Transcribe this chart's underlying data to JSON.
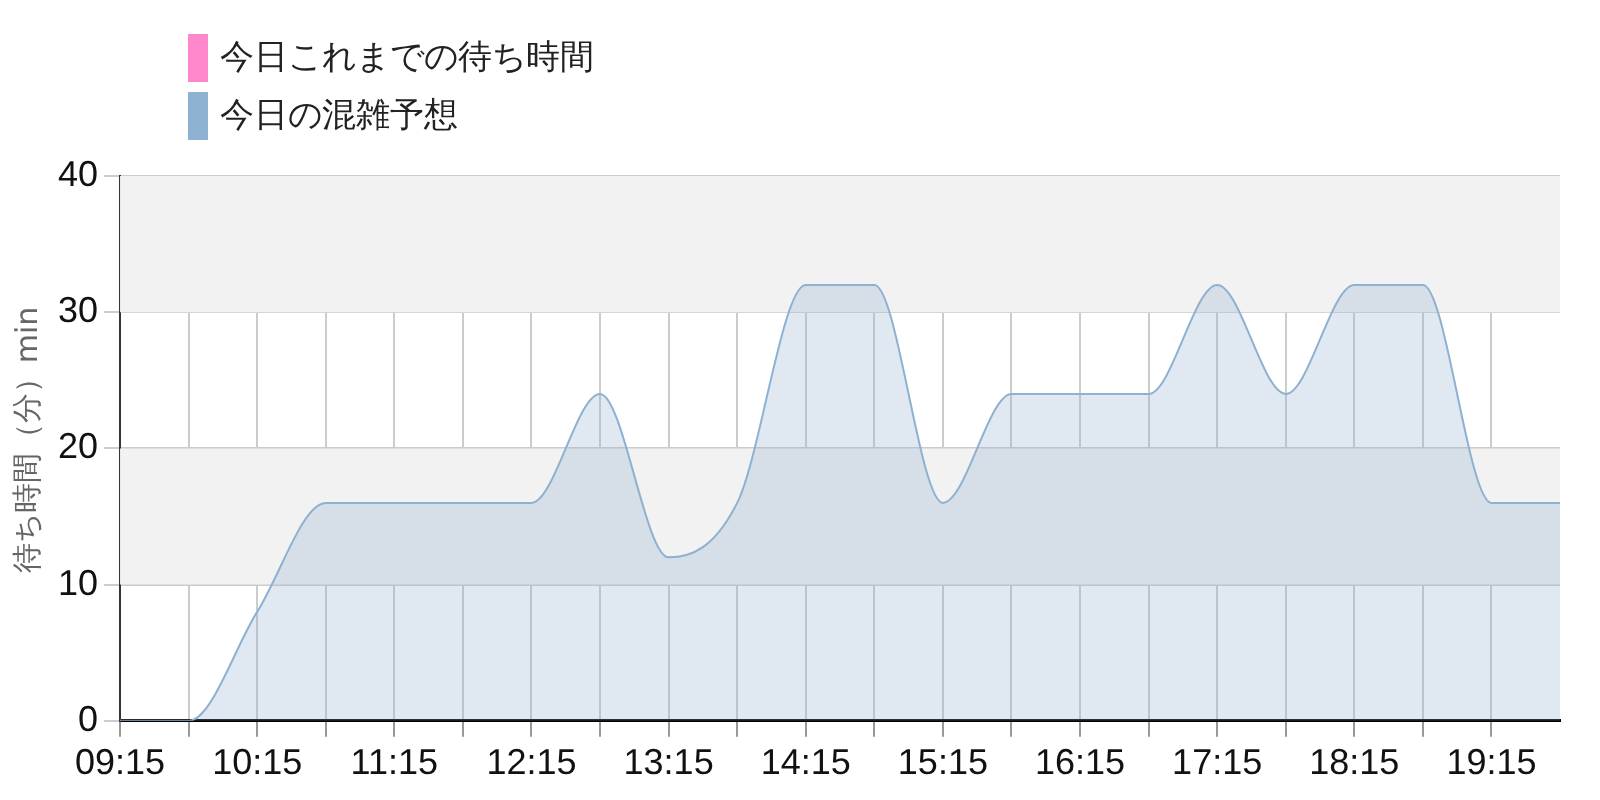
{
  "chart_data": {
    "type": "area",
    "ylabel": "待ち時間（分）min",
    "legend": "top left",
    "grid": true,
    "marker": "none",
    "x": [
      9.25,
      9.75,
      10.25,
      10.75,
      11.25,
      11.75,
      12.25,
      12.75,
      13.25,
      13.75,
      14.25,
      14.75,
      15.25,
      15.75,
      16.25,
      16.75,
      17.25,
      17.75,
      18.25,
      18.75,
      19.25,
      19.75
    ],
    "series": [
      {
        "name": "今日これまでの待ち時間",
        "color": "#ff88cc",
        "values": [
          null,
          null,
          null,
          null,
          null,
          null,
          null,
          null,
          null,
          null,
          null,
          null,
          null,
          null,
          null,
          null,
          null,
          null,
          null,
          null,
          null,
          null
        ]
      },
      {
        "name": "今日の混雑予想",
        "color": "#8eb1d2",
        "values": [
          0,
          0,
          8,
          16,
          16,
          16,
          16,
          24,
          12,
          16,
          32,
          32,
          16,
          24,
          24,
          24,
          32,
          24,
          32,
          32,
          16,
          16
        ]
      }
    ],
    "xlim": [
      9.25,
      19.75
    ],
    "xticks": [
      {
        "value": 9.25,
        "label": "09:15"
      },
      {
        "value": 9.75,
        "label": null
      },
      {
        "value": 10.25,
        "label": "10:15"
      },
      {
        "value": 10.75,
        "label": null
      },
      {
        "value": 11.25,
        "label": "11:15"
      },
      {
        "value": 11.75,
        "label": null
      },
      {
        "value": 12.25,
        "label": "12:15"
      },
      {
        "value": 12.75,
        "label": null
      },
      {
        "value": 13.25,
        "label": "13:15"
      },
      {
        "value": 13.75,
        "label": null
      },
      {
        "value": 14.25,
        "label": "14:15"
      },
      {
        "value": 14.75,
        "label": null
      },
      {
        "value": 15.25,
        "label": "15:15"
      },
      {
        "value": 15.75,
        "label": null
      },
      {
        "value": 16.25,
        "label": "16:15"
      },
      {
        "value": 16.75,
        "label": null
      },
      {
        "value": 17.25,
        "label": "17:15"
      },
      {
        "value": 17.75,
        "label": null
      },
      {
        "value": 18.25,
        "label": "18:15"
      },
      {
        "value": 18.75,
        "label": null
      },
      {
        "value": 19.25,
        "label": "19:15"
      }
    ],
    "ylim": [
      0,
      40
    ],
    "yticks": [
      0,
      10,
      20,
      30,
      40
    ],
    "bands": [
      {
        "axis": "y",
        "from": 10,
        "to": 20,
        "color": "#f2f2f2"
      },
      {
        "axis": "y",
        "from": 30,
        "to": 40,
        "color": "#f2f2f2"
      }
    ]
  }
}
